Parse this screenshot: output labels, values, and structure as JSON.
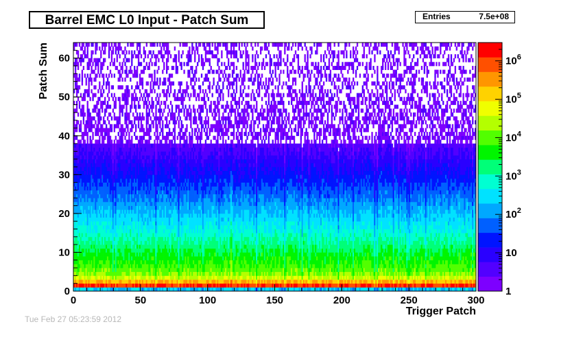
{
  "chart_data": {
    "type": "heatmap",
    "title": "Barrel EMC L0 Input - Patch Sum",
    "stats": {
      "label": "Entries",
      "value": "7.5e+08"
    },
    "xlabel": "Trigger Patch",
    "ylabel": "Patch Sum",
    "xlim": [
      0,
      300
    ],
    "ylim": [
      0,
      64
    ],
    "x_ticks": [
      "0",
      "50",
      "100",
      "150",
      "200",
      "250",
      "300"
    ],
    "y_ticks": [
      "0",
      "10",
      "20",
      "30",
      "40",
      "50",
      "60"
    ],
    "z_scale": "log",
    "zlim": [
      1,
      3000000
    ],
    "z_ticks": [
      "1",
      "10",
      "10",
      "10",
      "10",
      "10",
      "10"
    ],
    "z_tick_exponents": [
      "",
      "",
      "2",
      "3",
      "4",
      "5",
      "6"
    ],
    "bins_x": 300,
    "bins_y": 64,
    "profile_by_patch_sum": [
      [
        0,
        300
      ],
      [
        1,
        2000000
      ],
      [
        2,
        800000
      ],
      [
        3,
        60000
      ],
      [
        4,
        20000
      ],
      [
        5,
        12000
      ],
      [
        6,
        8000
      ],
      [
        8,
        5000
      ],
      [
        10,
        3000
      ],
      [
        12,
        1600
      ],
      [
        14,
        900
      ],
      [
        16,
        500
      ],
      [
        18,
        320
      ],
      [
        20,
        200
      ],
      [
        22,
        120
      ],
      [
        24,
        70
      ],
      [
        26,
        45
      ],
      [
        28,
        28
      ],
      [
        30,
        18
      ],
      [
        32,
        12
      ],
      [
        34,
        8
      ],
      [
        36,
        5
      ],
      [
        38,
        3.5
      ],
      [
        40,
        2.5
      ],
      [
        45,
        1.6
      ],
      [
        50,
        1.2
      ],
      [
        55,
        1.1
      ],
      [
        62,
        1.0
      ],
      [
        63,
        1.5
      ]
    ],
    "hot_patches": [
      117,
      181,
      276
    ],
    "palette": [
      "#7d00ff",
      "#5200ff",
      "#2a00ff",
      "#0014ff",
      "#0060ff",
      "#00a8ff",
      "#00e2ff",
      "#00ffd2",
      "#00ff78",
      "#00f500",
      "#52ff00",
      "#b4ff00",
      "#f0ff00",
      "#ffd200",
      "#ff9600",
      "#ff5000",
      "#ff0000"
    ],
    "grid": false,
    "legend": "color-scale-right"
  },
  "footer": {
    "stamp": "Tue Feb 27 05:23:59 2012"
  }
}
